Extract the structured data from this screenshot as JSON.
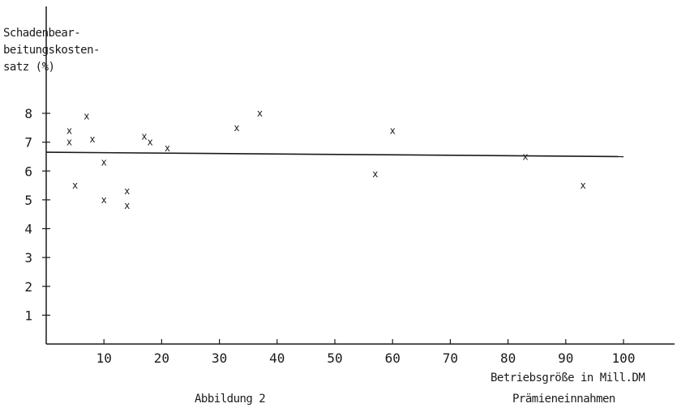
{
  "chart_data": {
    "type": "scatter",
    "ylabel_lines": [
      "Schadenbear-",
      "beitungskosten-",
      "satz (%)"
    ],
    "xlabel_lines": [
      "Betriebsgröße in Mill.DM",
      "Prämieneinnahmen"
    ],
    "caption": "Abbildung 2",
    "xlim": [
      0,
      105
    ],
    "ylim": [
      0,
      9
    ],
    "x_ticks": [
      10,
      20,
      30,
      40,
      50,
      60,
      70,
      80,
      90,
      100
    ],
    "y_ticks": [
      1,
      2,
      3,
      4,
      5,
      6,
      7,
      8
    ],
    "marker": "x",
    "grid": false,
    "points": [
      {
        "x": 4,
        "y": 7.4
      },
      {
        "x": 4,
        "y": 7.0
      },
      {
        "x": 5,
        "y": 5.5
      },
      {
        "x": 7,
        "y": 7.9
      },
      {
        "x": 8,
        "y": 7.1
      },
      {
        "x": 10,
        "y": 6.3
      },
      {
        "x": 10,
        "y": 5.0
      },
      {
        "x": 14,
        "y": 5.3
      },
      {
        "x": 14,
        "y": 4.8
      },
      {
        "x": 17,
        "y": 7.2
      },
      {
        "x": 18,
        "y": 7.0
      },
      {
        "x": 21,
        "y": 6.8
      },
      {
        "x": 33,
        "y": 7.5
      },
      {
        "x": 37,
        "y": 8.0
      },
      {
        "x": 57,
        "y": 5.9
      },
      {
        "x": 60,
        "y": 7.4
      },
      {
        "x": 83,
        "y": 6.5
      },
      {
        "x": 93,
        "y": 5.5
      }
    ],
    "trend_line": {
      "x": [
        0,
        100
      ],
      "y": [
        6.65,
        6.5
      ]
    }
  }
}
